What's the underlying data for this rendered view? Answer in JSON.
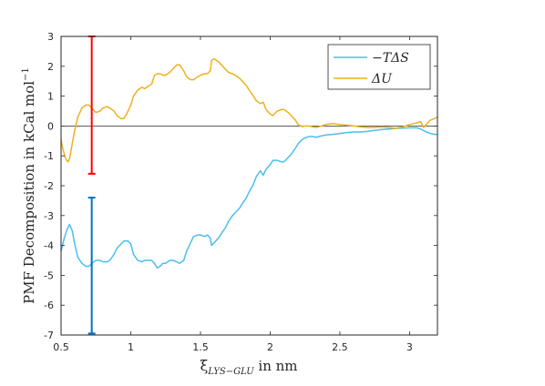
{
  "chart_data": {
    "type": "line",
    "xlabel_main": "ξ",
    "xlabel_sub": "LYS−GLU",
    "xlabel_suffix": " in nm",
    "ylabel": "PMF Decomposition in kCal mol",
    "ylabel_sup": "−1",
    "xlim": [
      0.5,
      3.2
    ],
    "ylim": [
      -7,
      3
    ],
    "xticks": [
      0.5,
      1,
      1.5,
      2,
      2.5,
      3
    ],
    "xtick_labels": [
      "0.5",
      "1",
      "1.5",
      "2",
      "2.5",
      "3"
    ],
    "yticks": [
      3,
      2,
      1,
      0,
      -1,
      -2,
      -3,
      -4,
      -5,
      -6,
      -7
    ],
    "ytick_labels": [
      "3",
      "2",
      "1",
      "0",
      "-1",
      "-2",
      "-3",
      "-4",
      "-5",
      "-6",
      "-7"
    ],
    "grid": false,
    "legend_position": "top-right",
    "zero_line": true,
    "series": [
      {
        "name": "−TΔS",
        "color": "#4DBEEE",
        "x": [
          0.5,
          0.52,
          0.54,
          0.56,
          0.58,
          0.6,
          0.62,
          0.65,
          0.68,
          0.7,
          0.72,
          0.75,
          0.78,
          0.8,
          0.83,
          0.85,
          0.88,
          0.9,
          0.93,
          0.95,
          0.98,
          1.0,
          1.02,
          1.05,
          1.08,
          1.1,
          1.13,
          1.15,
          1.17,
          1.19,
          1.21,
          1.23,
          1.25,
          1.28,
          1.3,
          1.33,
          1.35,
          1.38,
          1.4,
          1.43,
          1.45,
          1.48,
          1.5,
          1.53,
          1.55,
          1.57,
          1.58,
          1.6,
          1.63,
          1.65,
          1.68,
          1.7,
          1.73,
          1.75,
          1.78,
          1.8,
          1.83,
          1.85,
          1.88,
          1.9,
          1.93,
          1.95,
          1.97,
          2.0,
          2.02,
          2.05,
          2.08,
          2.1,
          2.13,
          2.15,
          2.18,
          2.2,
          2.23,
          2.25,
          2.28,
          2.3,
          2.33,
          2.35,
          2.4,
          2.45,
          2.5,
          2.55,
          2.6,
          2.65,
          2.7,
          2.75,
          2.8,
          2.85,
          2.9,
          2.95,
          3.0,
          3.05,
          3.08,
          3.1,
          3.12,
          3.15,
          3.18,
          3.2
        ],
        "y": [
          -4.2,
          -3.8,
          -3.5,
          -3.3,
          -3.5,
          -4.0,
          -4.4,
          -4.6,
          -4.7,
          -4.7,
          -4.6,
          -4.5,
          -4.5,
          -4.55,
          -4.55,
          -4.5,
          -4.3,
          -4.1,
          -3.95,
          -3.85,
          -3.85,
          -3.95,
          -4.3,
          -4.5,
          -4.55,
          -4.5,
          -4.5,
          -4.5,
          -4.6,
          -4.75,
          -4.7,
          -4.6,
          -4.6,
          -4.5,
          -4.5,
          -4.55,
          -4.6,
          -4.5,
          -4.2,
          -3.9,
          -3.7,
          -3.65,
          -3.65,
          -3.7,
          -3.65,
          -3.75,
          -4.0,
          -3.9,
          -3.75,
          -3.6,
          -3.4,
          -3.2,
          -3.0,
          -2.9,
          -2.75,
          -2.6,
          -2.4,
          -2.2,
          -1.95,
          -1.7,
          -1.5,
          -1.65,
          -1.45,
          -1.3,
          -1.15,
          -1.15,
          -1.2,
          -1.2,
          -1.05,
          -0.95,
          -0.75,
          -0.6,
          -0.45,
          -0.4,
          -0.35,
          -0.35,
          -0.38,
          -0.35,
          -0.3,
          -0.28,
          -0.25,
          -0.22,
          -0.2,
          -0.2,
          -0.18,
          -0.15,
          -0.12,
          -0.1,
          -0.08,
          -0.07,
          -0.06,
          -0.06,
          -0.1,
          -0.15,
          -0.2,
          -0.25,
          -0.28,
          -0.28
        ]
      },
      {
        "name": "ΔU",
        "color": "#EDB120",
        "x": [
          0.5,
          0.51,
          0.52,
          0.53,
          0.54,
          0.55,
          0.56,
          0.58,
          0.6,
          0.62,
          0.65,
          0.68,
          0.7,
          0.72,
          0.75,
          0.78,
          0.8,
          0.83,
          0.85,
          0.88,
          0.9,
          0.93,
          0.95,
          0.97,
          1.0,
          1.02,
          1.05,
          1.08,
          1.1,
          1.13,
          1.15,
          1.17,
          1.19,
          1.21,
          1.23,
          1.25,
          1.28,
          1.3,
          1.33,
          1.35,
          1.38,
          1.4,
          1.43,
          1.45,
          1.48,
          1.5,
          1.53,
          1.55,
          1.57,
          1.58,
          1.6,
          1.63,
          1.65,
          1.68,
          1.7,
          1.73,
          1.75,
          1.78,
          1.8,
          1.83,
          1.85,
          1.88,
          1.9,
          1.93,
          1.95,
          1.97,
          2.0,
          2.02,
          2.05,
          2.08,
          2.1,
          2.13,
          2.15,
          2.18,
          2.2,
          2.23,
          2.25,
          2.28,
          2.3,
          2.33,
          2.35,
          2.4,
          2.45,
          2.5,
          2.55,
          2.6,
          2.65,
          2.7,
          2.75,
          2.8,
          2.85,
          2.9,
          2.95,
          3.0,
          3.05,
          3.08,
          3.1,
          3.12,
          3.15,
          3.18,
          3.2
        ],
        "y": [
          -0.45,
          -0.7,
          -0.9,
          -1.05,
          -1.15,
          -1.2,
          -1.1,
          -0.6,
          -0.1,
          0.3,
          0.6,
          0.7,
          0.7,
          0.6,
          0.45,
          0.5,
          0.6,
          0.65,
          0.6,
          0.5,
          0.35,
          0.25,
          0.25,
          0.4,
          0.7,
          1.0,
          1.2,
          1.3,
          1.25,
          1.35,
          1.4,
          1.7,
          1.75,
          1.75,
          1.7,
          1.7,
          1.8,
          1.9,
          2.05,
          2.05,
          1.85,
          1.65,
          1.55,
          1.55,
          1.65,
          1.7,
          1.75,
          1.75,
          1.85,
          2.2,
          2.25,
          2.15,
          2.05,
          1.9,
          1.8,
          1.75,
          1.7,
          1.6,
          1.5,
          1.35,
          1.2,
          1.0,
          0.85,
          0.75,
          0.8,
          0.55,
          0.4,
          0.35,
          0.5,
          0.55,
          0.55,
          0.45,
          0.35,
          0.2,
          0.05,
          -0.02,
          0.0,
          0.0,
          -0.02,
          -0.05,
          -0.02,
          0.05,
          0.08,
          0.05,
          0.03,
          0.0,
          -0.03,
          -0.05,
          -0.05,
          -0.03,
          -0.05,
          -0.08,
          -0.03,
          0.05,
          0.1,
          0.15,
          -0.05,
          0.05,
          0.2,
          0.25,
          0.3
        ]
      }
    ],
    "error_bars": [
      {
        "x": 0.72,
        "low": -1.6,
        "high": 3.0,
        "color": "#FF0000"
      },
      {
        "x": 0.72,
        "low": -6.95,
        "high": -2.4,
        "color": "#0072BD"
      }
    ]
  }
}
